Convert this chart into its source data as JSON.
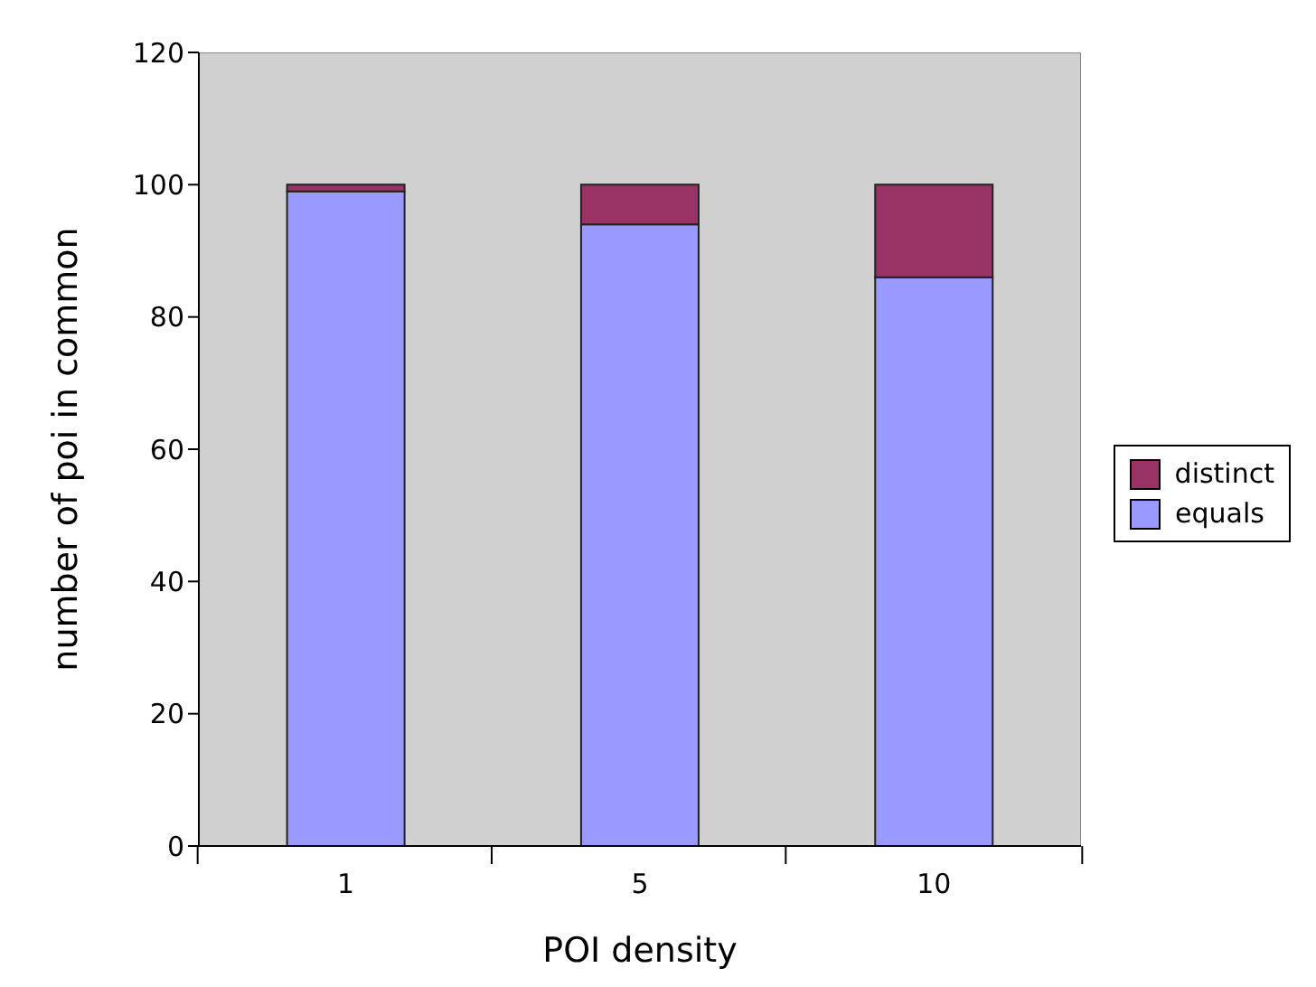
{
  "chart_data": {
    "type": "bar",
    "xlabel": "POI density",
    "ylabel": "number of poi in common",
    "categories": [
      "1",
      "5",
      "10"
    ],
    "stacked": true,
    "series": [
      {
        "name": "equals",
        "color": "#9999ff",
        "values": [
          99,
          94,
          86
        ]
      },
      {
        "name": "distinct",
        "color": "#993366",
        "values": [
          1,
          6,
          14
        ]
      }
    ],
    "ylim": [
      0,
      120
    ],
    "yticks": [
      0,
      20,
      40,
      60,
      80,
      100,
      120
    ],
    "grid": false,
    "legend": "right"
  }
}
